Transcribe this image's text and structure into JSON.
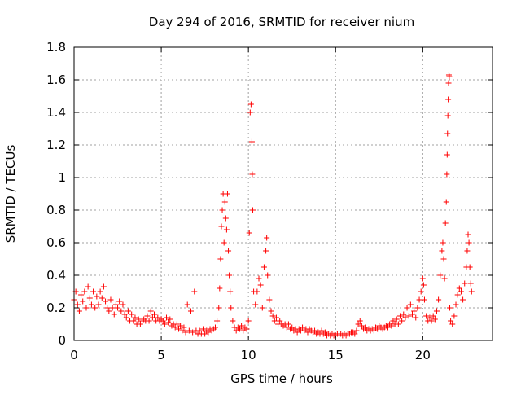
{
  "chart_data": {
    "type": "scatter",
    "title": "Day 294 of 2016, SRMTID for receiver nium",
    "xlabel": "GPS time / hours",
    "ylabel": "SRMTID / TECUs",
    "xlim": [
      0,
      24
    ],
    "ylim": [
      0,
      1.8
    ],
    "xticks": [
      0,
      5,
      10,
      15,
      20
    ],
    "xtick_labels": [
      "0",
      "5",
      "10",
      "15",
      "20"
    ],
    "yticks": [
      0,
      0.2,
      0.4,
      0.6,
      0.8,
      1,
      1.2,
      1.4,
      1.6,
      1.8
    ],
    "ytick_labels": [
      "0",
      "0.2",
      "0.4",
      "0.6",
      "0.8",
      "1",
      "1.2",
      "1.4",
      "1.6",
      "1.8"
    ],
    "grid": true,
    "marker": "+",
    "color": "#ff0000",
    "series": [
      {
        "name": "SRMTID",
        "points": [
          [
            0.0,
            0.25
          ],
          [
            0.1,
            0.3
          ],
          [
            0.2,
            0.22
          ],
          [
            0.3,
            0.18
          ],
          [
            0.4,
            0.28
          ],
          [
            0.5,
            0.24
          ],
          [
            0.6,
            0.3
          ],
          [
            0.7,
            0.2
          ],
          [
            0.8,
            0.33
          ],
          [
            0.9,
            0.26
          ],
          [
            1.0,
            0.22
          ],
          [
            1.1,
            0.3
          ],
          [
            1.2,
            0.2
          ],
          [
            1.3,
            0.27
          ],
          [
            1.4,
            0.22
          ],
          [
            1.5,
            0.3
          ],
          [
            1.6,
            0.26
          ],
          [
            1.7,
            0.33
          ],
          [
            1.8,
            0.24
          ],
          [
            1.9,
            0.2
          ],
          [
            2.0,
            0.18
          ],
          [
            2.1,
            0.25
          ],
          [
            2.2,
            0.2
          ],
          [
            2.3,
            0.16
          ],
          [
            2.4,
            0.22
          ],
          [
            2.5,
            0.2
          ],
          [
            2.6,
            0.24
          ],
          [
            2.7,
            0.18
          ],
          [
            2.8,
            0.22
          ],
          [
            2.9,
            0.16
          ],
          [
            3.0,
            0.14
          ],
          [
            3.1,
            0.18
          ],
          [
            3.2,
            0.12
          ],
          [
            3.3,
            0.16
          ],
          [
            3.4,
            0.12
          ],
          [
            3.5,
            0.14
          ],
          [
            3.6,
            0.1
          ],
          [
            3.7,
            0.13
          ],
          [
            3.8,
            0.1
          ],
          [
            3.9,
            0.12
          ],
          [
            4.0,
            0.13
          ],
          [
            4.1,
            0.12
          ],
          [
            4.2,
            0.15
          ],
          [
            4.3,
            0.12
          ],
          [
            4.4,
            0.18
          ],
          [
            4.5,
            0.14
          ],
          [
            4.6,
            0.16
          ],
          [
            4.7,
            0.12
          ],
          [
            4.8,
            0.14
          ],
          [
            4.9,
            0.12
          ],
          [
            5.0,
            0.13
          ],
          [
            5.1,
            0.12
          ],
          [
            5.2,
            0.1
          ],
          [
            5.3,
            0.14
          ],
          [
            5.4,
            0.11
          ],
          [
            5.5,
            0.13
          ],
          [
            5.6,
            0.09
          ],
          [
            5.7,
            0.1
          ],
          [
            5.8,
            0.08
          ],
          [
            5.9,
            0.1
          ],
          [
            6.0,
            0.07
          ],
          [
            6.1,
            0.09
          ],
          [
            6.2,
            0.06
          ],
          [
            6.3,
            0.08
          ],
          [
            6.4,
            0.05
          ],
          [
            6.5,
            0.22
          ],
          [
            6.6,
            0.06
          ],
          [
            6.7,
            0.18
          ],
          [
            6.8,
            0.05
          ],
          [
            6.9,
            0.3
          ],
          [
            7.0,
            0.06
          ],
          [
            7.1,
            0.04
          ],
          [
            7.2,
            0.06
          ],
          [
            7.3,
            0.04
          ],
          [
            7.4,
            0.07
          ],
          [
            7.5,
            0.04
          ],
          [
            7.6,
            0.06
          ],
          [
            7.7,
            0.05
          ],
          [
            7.8,
            0.07
          ],
          [
            7.9,
            0.06
          ],
          [
            8.0,
            0.07
          ],
          [
            8.1,
            0.08
          ],
          [
            8.2,
            0.12
          ],
          [
            8.3,
            0.2
          ],
          [
            8.35,
            0.32
          ],
          [
            8.4,
            0.5
          ],
          [
            8.45,
            0.7
          ],
          [
            8.5,
            0.8
          ],
          [
            8.55,
            0.9
          ],
          [
            8.6,
            0.6
          ],
          [
            8.65,
            0.85
          ],
          [
            8.7,
            0.75
          ],
          [
            8.75,
            0.68
          ],
          [
            8.8,
            0.9
          ],
          [
            8.85,
            0.55
          ],
          [
            8.9,
            0.4
          ],
          [
            8.95,
            0.3
          ],
          [
            9.0,
            0.2
          ],
          [
            9.1,
            0.12
          ],
          [
            9.2,
            0.08
          ],
          [
            9.3,
            0.06
          ],
          [
            9.4,
            0.08
          ],
          [
            9.5,
            0.07
          ],
          [
            9.6,
            0.09
          ],
          [
            9.7,
            0.06
          ],
          [
            9.8,
            0.08
          ],
          [
            9.9,
            0.07
          ],
          [
            10.0,
            0.12
          ],
          [
            10.05,
            0.66
          ],
          [
            10.1,
            1.4
          ],
          [
            10.15,
            1.45
          ],
          [
            10.2,
            1.22
          ],
          [
            10.22,
            1.02
          ],
          [
            10.25,
            0.8
          ],
          [
            10.3,
            0.3
          ],
          [
            10.4,
            0.22
          ],
          [
            10.5,
            0.3
          ],
          [
            10.6,
            0.38
          ],
          [
            10.7,
            0.34
          ],
          [
            10.8,
            0.2
          ],
          [
            10.9,
            0.45
          ],
          [
            11.0,
            0.55
          ],
          [
            11.05,
            0.63
          ],
          [
            11.1,
            0.4
          ],
          [
            11.2,
            0.25
          ],
          [
            11.3,
            0.18
          ],
          [
            11.4,
            0.15
          ],
          [
            11.5,
            0.12
          ],
          [
            11.6,
            0.14
          ],
          [
            11.7,
            0.1
          ],
          [
            11.8,
            0.12
          ],
          [
            11.9,
            0.1
          ],
          [
            12.0,
            0.09
          ],
          [
            12.1,
            0.1
          ],
          [
            12.2,
            0.08
          ],
          [
            12.3,
            0.1
          ],
          [
            12.4,
            0.07
          ],
          [
            12.5,
            0.08
          ],
          [
            12.6,
            0.06
          ],
          [
            12.7,
            0.07
          ],
          [
            12.8,
            0.05
          ],
          [
            12.9,
            0.07
          ],
          [
            13.0,
            0.06
          ],
          [
            13.1,
            0.08
          ],
          [
            13.2,
            0.06
          ],
          [
            13.3,
            0.07
          ],
          [
            13.4,
            0.05
          ],
          [
            13.5,
            0.07
          ],
          [
            13.6,
            0.06
          ],
          [
            13.7,
            0.05
          ],
          [
            13.8,
            0.06
          ],
          [
            13.9,
            0.04
          ],
          [
            14.0,
            0.05
          ],
          [
            14.1,
            0.04
          ],
          [
            14.2,
            0.06
          ],
          [
            14.3,
            0.04
          ],
          [
            14.4,
            0.05
          ],
          [
            14.5,
            0.03
          ],
          [
            14.6,
            0.04
          ],
          [
            14.7,
            0.03
          ],
          [
            14.8,
            0.04
          ],
          [
            14.9,
            0.03
          ],
          [
            15.0,
            0.03
          ],
          [
            15.1,
            0.04
          ],
          [
            15.2,
            0.03
          ],
          [
            15.3,
            0.04
          ],
          [
            15.4,
            0.03
          ],
          [
            15.5,
            0.04
          ],
          [
            15.6,
            0.03
          ],
          [
            15.7,
            0.04
          ],
          [
            15.8,
            0.04
          ],
          [
            15.9,
            0.05
          ],
          [
            16.0,
            0.05
          ],
          [
            16.1,
            0.04
          ],
          [
            16.2,
            0.06
          ],
          [
            16.3,
            0.1
          ],
          [
            16.4,
            0.12
          ],
          [
            16.5,
            0.09
          ],
          [
            16.6,
            0.07
          ],
          [
            16.7,
            0.08
          ],
          [
            16.8,
            0.06
          ],
          [
            16.9,
            0.07
          ],
          [
            17.0,
            0.06
          ],
          [
            17.1,
            0.07
          ],
          [
            17.2,
            0.06
          ],
          [
            17.3,
            0.08
          ],
          [
            17.4,
            0.07
          ],
          [
            17.5,
            0.09
          ],
          [
            17.6,
            0.08
          ],
          [
            17.7,
            0.07
          ],
          [
            17.8,
            0.08
          ],
          [
            17.9,
            0.09
          ],
          [
            18.0,
            0.08
          ],
          [
            18.1,
            0.1
          ],
          [
            18.2,
            0.09
          ],
          [
            18.3,
            0.12
          ],
          [
            18.4,
            0.1
          ],
          [
            18.5,
            0.13
          ],
          [
            18.6,
            0.1
          ],
          [
            18.7,
            0.15
          ],
          [
            18.8,
            0.12
          ],
          [
            18.9,
            0.16
          ],
          [
            19.0,
            0.14
          ],
          [
            19.1,
            0.2
          ],
          [
            19.2,
            0.15
          ],
          [
            19.3,
            0.22
          ],
          [
            19.4,
            0.16
          ],
          [
            19.5,
            0.18
          ],
          [
            19.6,
            0.14
          ],
          [
            19.7,
            0.2
          ],
          [
            19.8,
            0.25
          ],
          [
            19.9,
            0.3
          ],
          [
            20.0,
            0.38
          ],
          [
            20.05,
            0.34
          ],
          [
            20.1,
            0.25
          ],
          [
            20.2,
            0.15
          ],
          [
            20.3,
            0.12
          ],
          [
            20.4,
            0.14
          ],
          [
            20.5,
            0.12
          ],
          [
            20.6,
            0.15
          ],
          [
            20.7,
            0.13
          ],
          [
            20.8,
            0.18
          ],
          [
            20.9,
            0.25
          ],
          [
            21.0,
            0.4
          ],
          [
            21.1,
            0.55
          ],
          [
            21.15,
            0.6
          ],
          [
            21.2,
            0.5
          ],
          [
            21.25,
            0.38
          ],
          [
            21.3,
            0.72
          ],
          [
            21.35,
            0.85
          ],
          [
            21.38,
            1.02
          ],
          [
            21.4,
            1.14
          ],
          [
            21.42,
            1.27
          ],
          [
            21.44,
            1.38
          ],
          [
            21.46,
            1.48
          ],
          [
            21.48,
            1.58
          ],
          [
            21.5,
            1.63
          ],
          [
            21.52,
            1.62
          ],
          [
            21.55,
            0.2
          ],
          [
            21.6,
            0.12
          ],
          [
            21.7,
            0.1
          ],
          [
            21.8,
            0.15
          ],
          [
            21.9,
            0.22
          ],
          [
            22.0,
            0.28
          ],
          [
            22.1,
            0.32
          ],
          [
            22.2,
            0.3
          ],
          [
            22.3,
            0.25
          ],
          [
            22.4,
            0.35
          ],
          [
            22.5,
            0.45
          ],
          [
            22.55,
            0.55
          ],
          [
            22.6,
            0.65
          ],
          [
            22.65,
            0.6
          ],
          [
            22.7,
            0.45
          ],
          [
            22.75,
            0.35
          ],
          [
            22.8,
            0.3
          ]
        ]
      }
    ]
  }
}
